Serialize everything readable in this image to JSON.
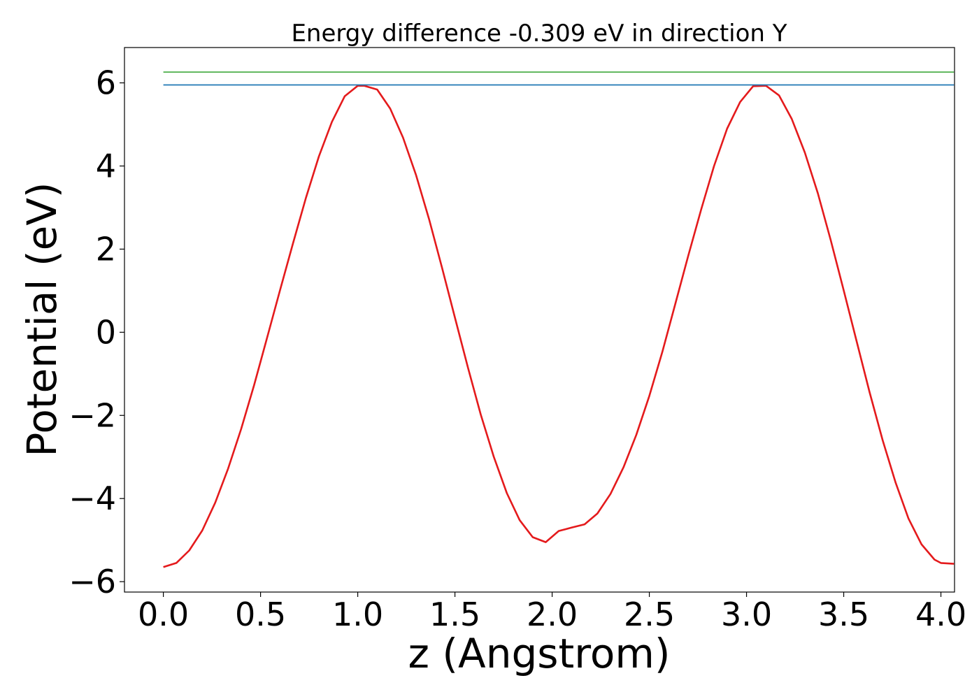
{
  "chart_data": {
    "type": "line",
    "title": "Energy difference -0.309 eV in direction Y",
    "xlabel": "z (Angstrom)",
    "ylabel": "Potential (eV)",
    "xlim": [
      -0.2,
      4.07
    ],
    "ylim": [
      -6.25,
      6.85
    ],
    "xticks": [
      {
        "value": 0.0,
        "label": "0.0"
      },
      {
        "value": 0.5,
        "label": "0.5"
      },
      {
        "value": 1.0,
        "label": "1.0"
      },
      {
        "value": 1.5,
        "label": "1.5"
      },
      {
        "value": 2.0,
        "label": "2.0"
      },
      {
        "value": 2.5,
        "label": "2.5"
      },
      {
        "value": 3.0,
        "label": "3.0"
      },
      {
        "value": 3.5,
        "label": "3.5"
      },
      {
        "value": 4.0,
        "label": "4.0"
      }
    ],
    "yticks": [
      {
        "value": -6,
        "label": "−6"
      },
      {
        "value": -4,
        "label": "−4"
      },
      {
        "value": -2,
        "label": "−2"
      },
      {
        "value": 0,
        "label": "0"
      },
      {
        "value": 2,
        "label": "2"
      },
      {
        "value": 4,
        "label": "4"
      },
      {
        "value": 6,
        "label": "6"
      }
    ],
    "grid": false,
    "series": [
      {
        "color": "#e41a1c",
        "x": [
          0.0,
          0.067,
          0.133,
          0.2,
          0.267,
          0.333,
          0.4,
          0.467,
          0.533,
          0.6,
          0.667,
          0.733,
          0.8,
          0.867,
          0.933,
          1.0,
          1.034,
          1.1,
          1.167,
          1.233,
          1.3,
          1.367,
          1.433,
          1.5,
          1.567,
          1.633,
          1.7,
          1.767,
          1.833,
          1.9,
          1.967,
          2.034,
          2.067,
          2.1,
          2.167,
          2.233,
          2.3,
          2.367,
          2.433,
          2.5,
          2.567,
          2.633,
          2.7,
          2.767,
          2.833,
          2.9,
          2.967,
          3.034,
          3.1,
          3.167,
          3.233,
          3.3,
          3.367,
          3.433,
          3.5,
          3.567,
          3.633,
          3.7,
          3.767,
          3.833,
          3.9,
          3.967,
          4.0,
          4.067
        ],
        "y": [
          -5.65,
          -5.55,
          -5.25,
          -4.77,
          -4.1,
          -3.28,
          -2.33,
          -1.27,
          -0.14,
          1.01,
          2.14,
          3.23,
          4.23,
          5.06,
          5.68,
          5.93,
          5.93,
          5.84,
          5.38,
          4.68,
          3.78,
          2.72,
          1.56,
          0.35,
          -0.85,
          -1.98,
          -3.0,
          -3.87,
          -4.52,
          -4.93,
          -5.05,
          -4.78,
          -4.74,
          -4.7,
          -4.62,
          -4.36,
          -3.89,
          -3.25,
          -2.47,
          -1.53,
          -0.47,
          0.67,
          1.84,
          2.96,
          4.0,
          4.9,
          5.54,
          5.92,
          5.93,
          5.7,
          5.13,
          4.32,
          3.34,
          2.22,
          1.01,
          -0.23,
          -1.44,
          -2.59,
          -3.62,
          -4.48,
          -5.1,
          -5.47,
          -5.55,
          -5.57
        ]
      },
      {
        "color": "#1f77b4",
        "x": [
          0.0,
          4.067
        ],
        "y": [
          5.95,
          5.95
        ]
      },
      {
        "color": "#4daf4a",
        "x": [
          0.0,
          4.067
        ],
        "y": [
          6.26,
          6.26
        ]
      }
    ]
  }
}
